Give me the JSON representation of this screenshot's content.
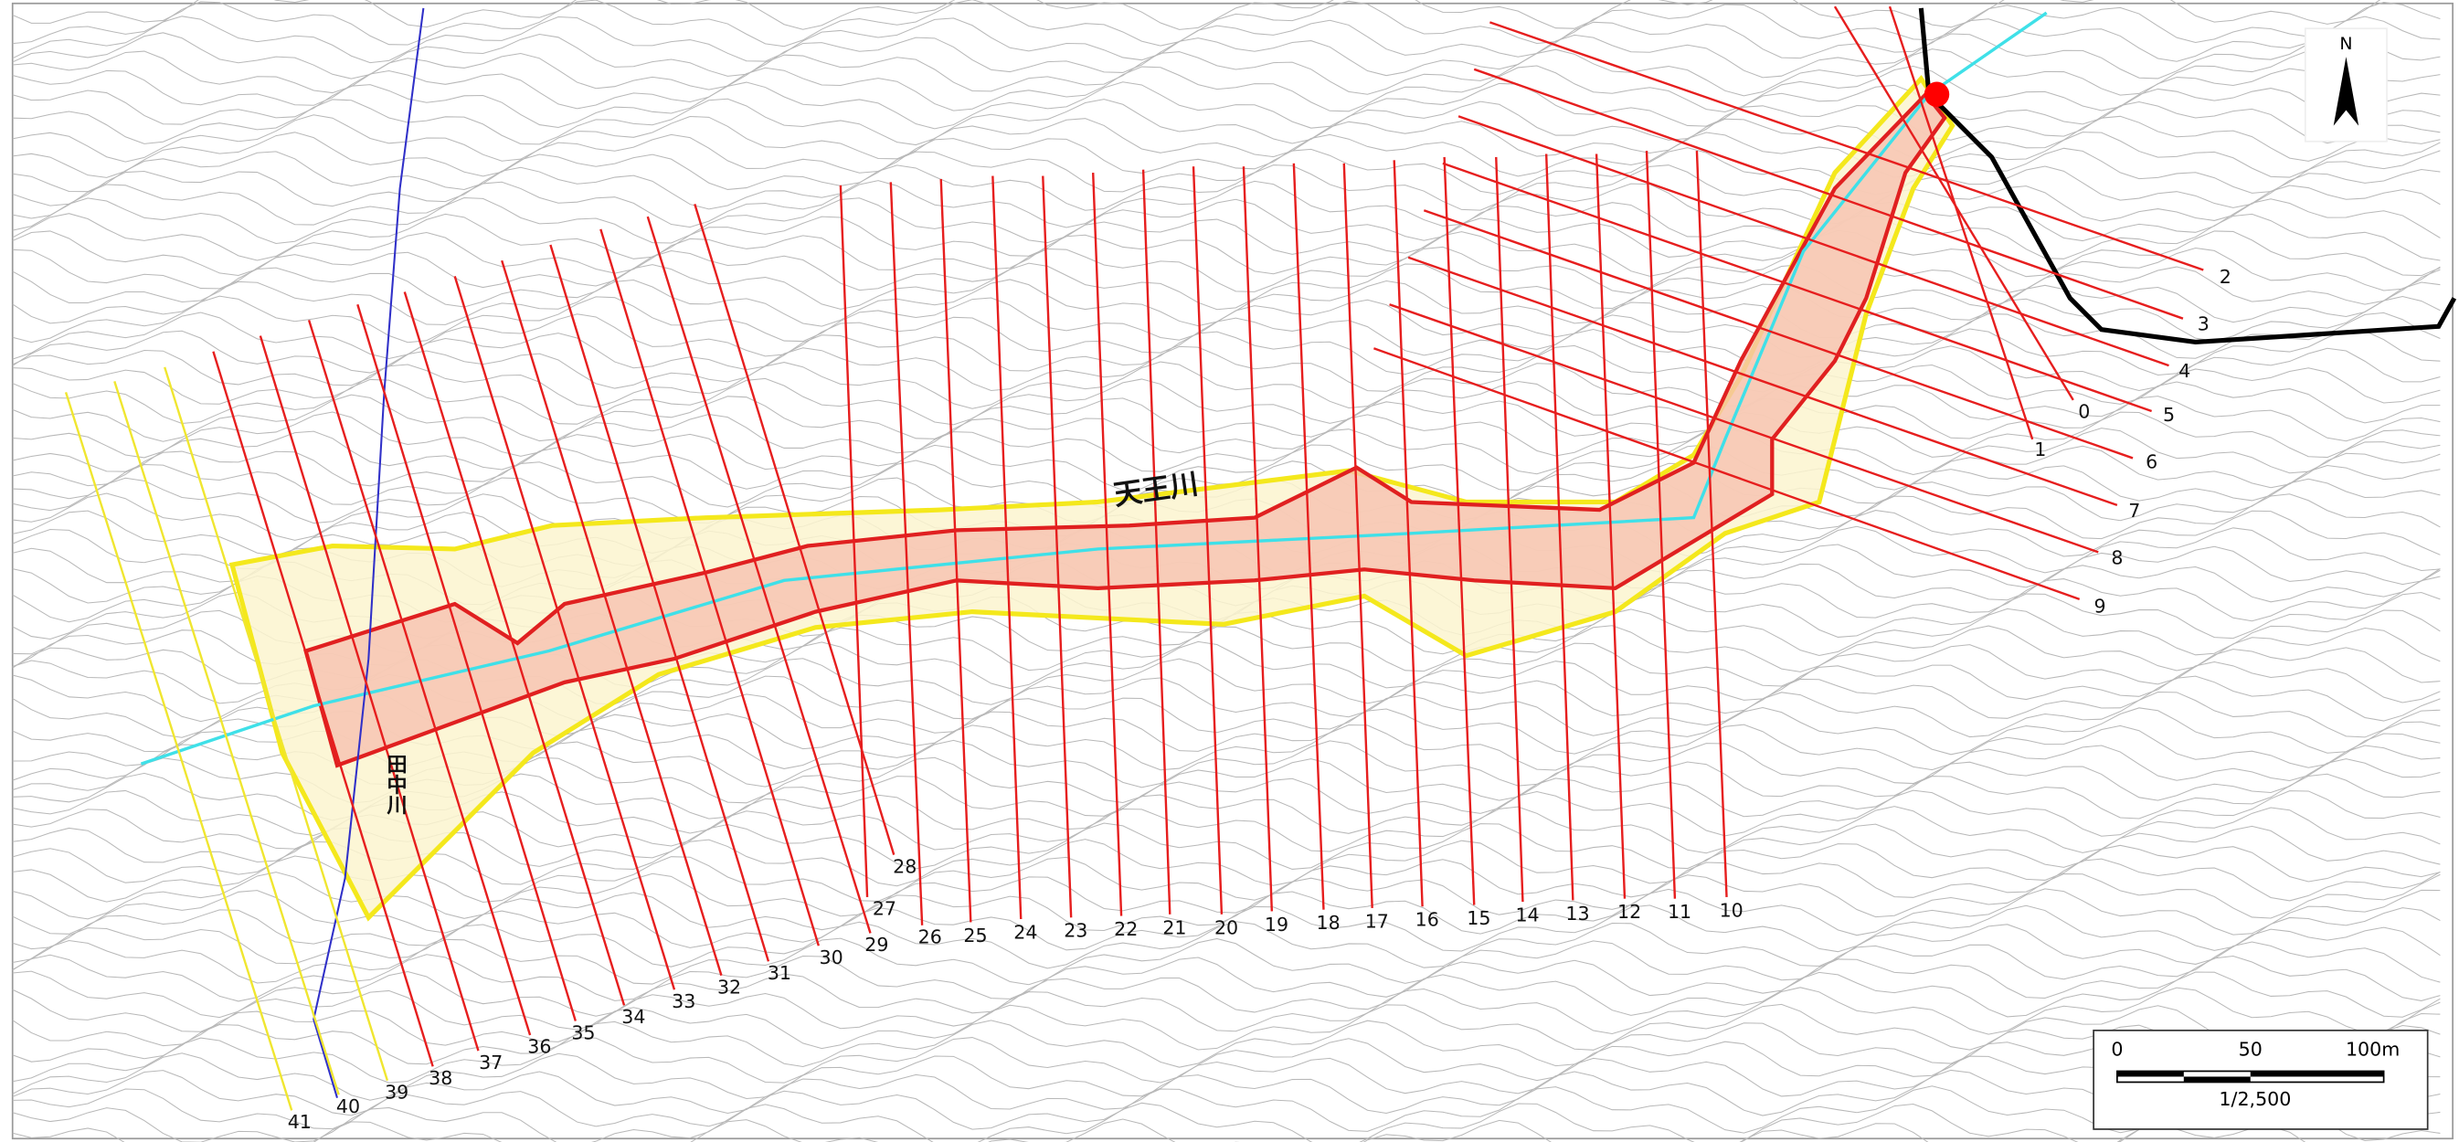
{
  "map": {
    "river_labels": [
      "天王川",
      "田中川"
    ],
    "sections": [
      "0",
      "1",
      "2",
      "3",
      "4",
      "5",
      "6",
      "7",
      "8",
      "9",
      "10",
      "11",
      "12",
      "13",
      "14",
      "15",
      "16",
      "17",
      "18",
      "19",
      "20",
      "21",
      "22",
      "23",
      "24",
      "25",
      "26",
      "27",
      "28",
      "29",
      "30",
      "31",
      "32",
      "33",
      "34",
      "35",
      "36",
      "37",
      "38",
      "39",
      "40",
      "41"
    ],
    "north": "N",
    "scale": {
      "ticks": [
        "0",
        "50",
        "100m"
      ],
      "ratio": "1/2,500"
    }
  }
}
